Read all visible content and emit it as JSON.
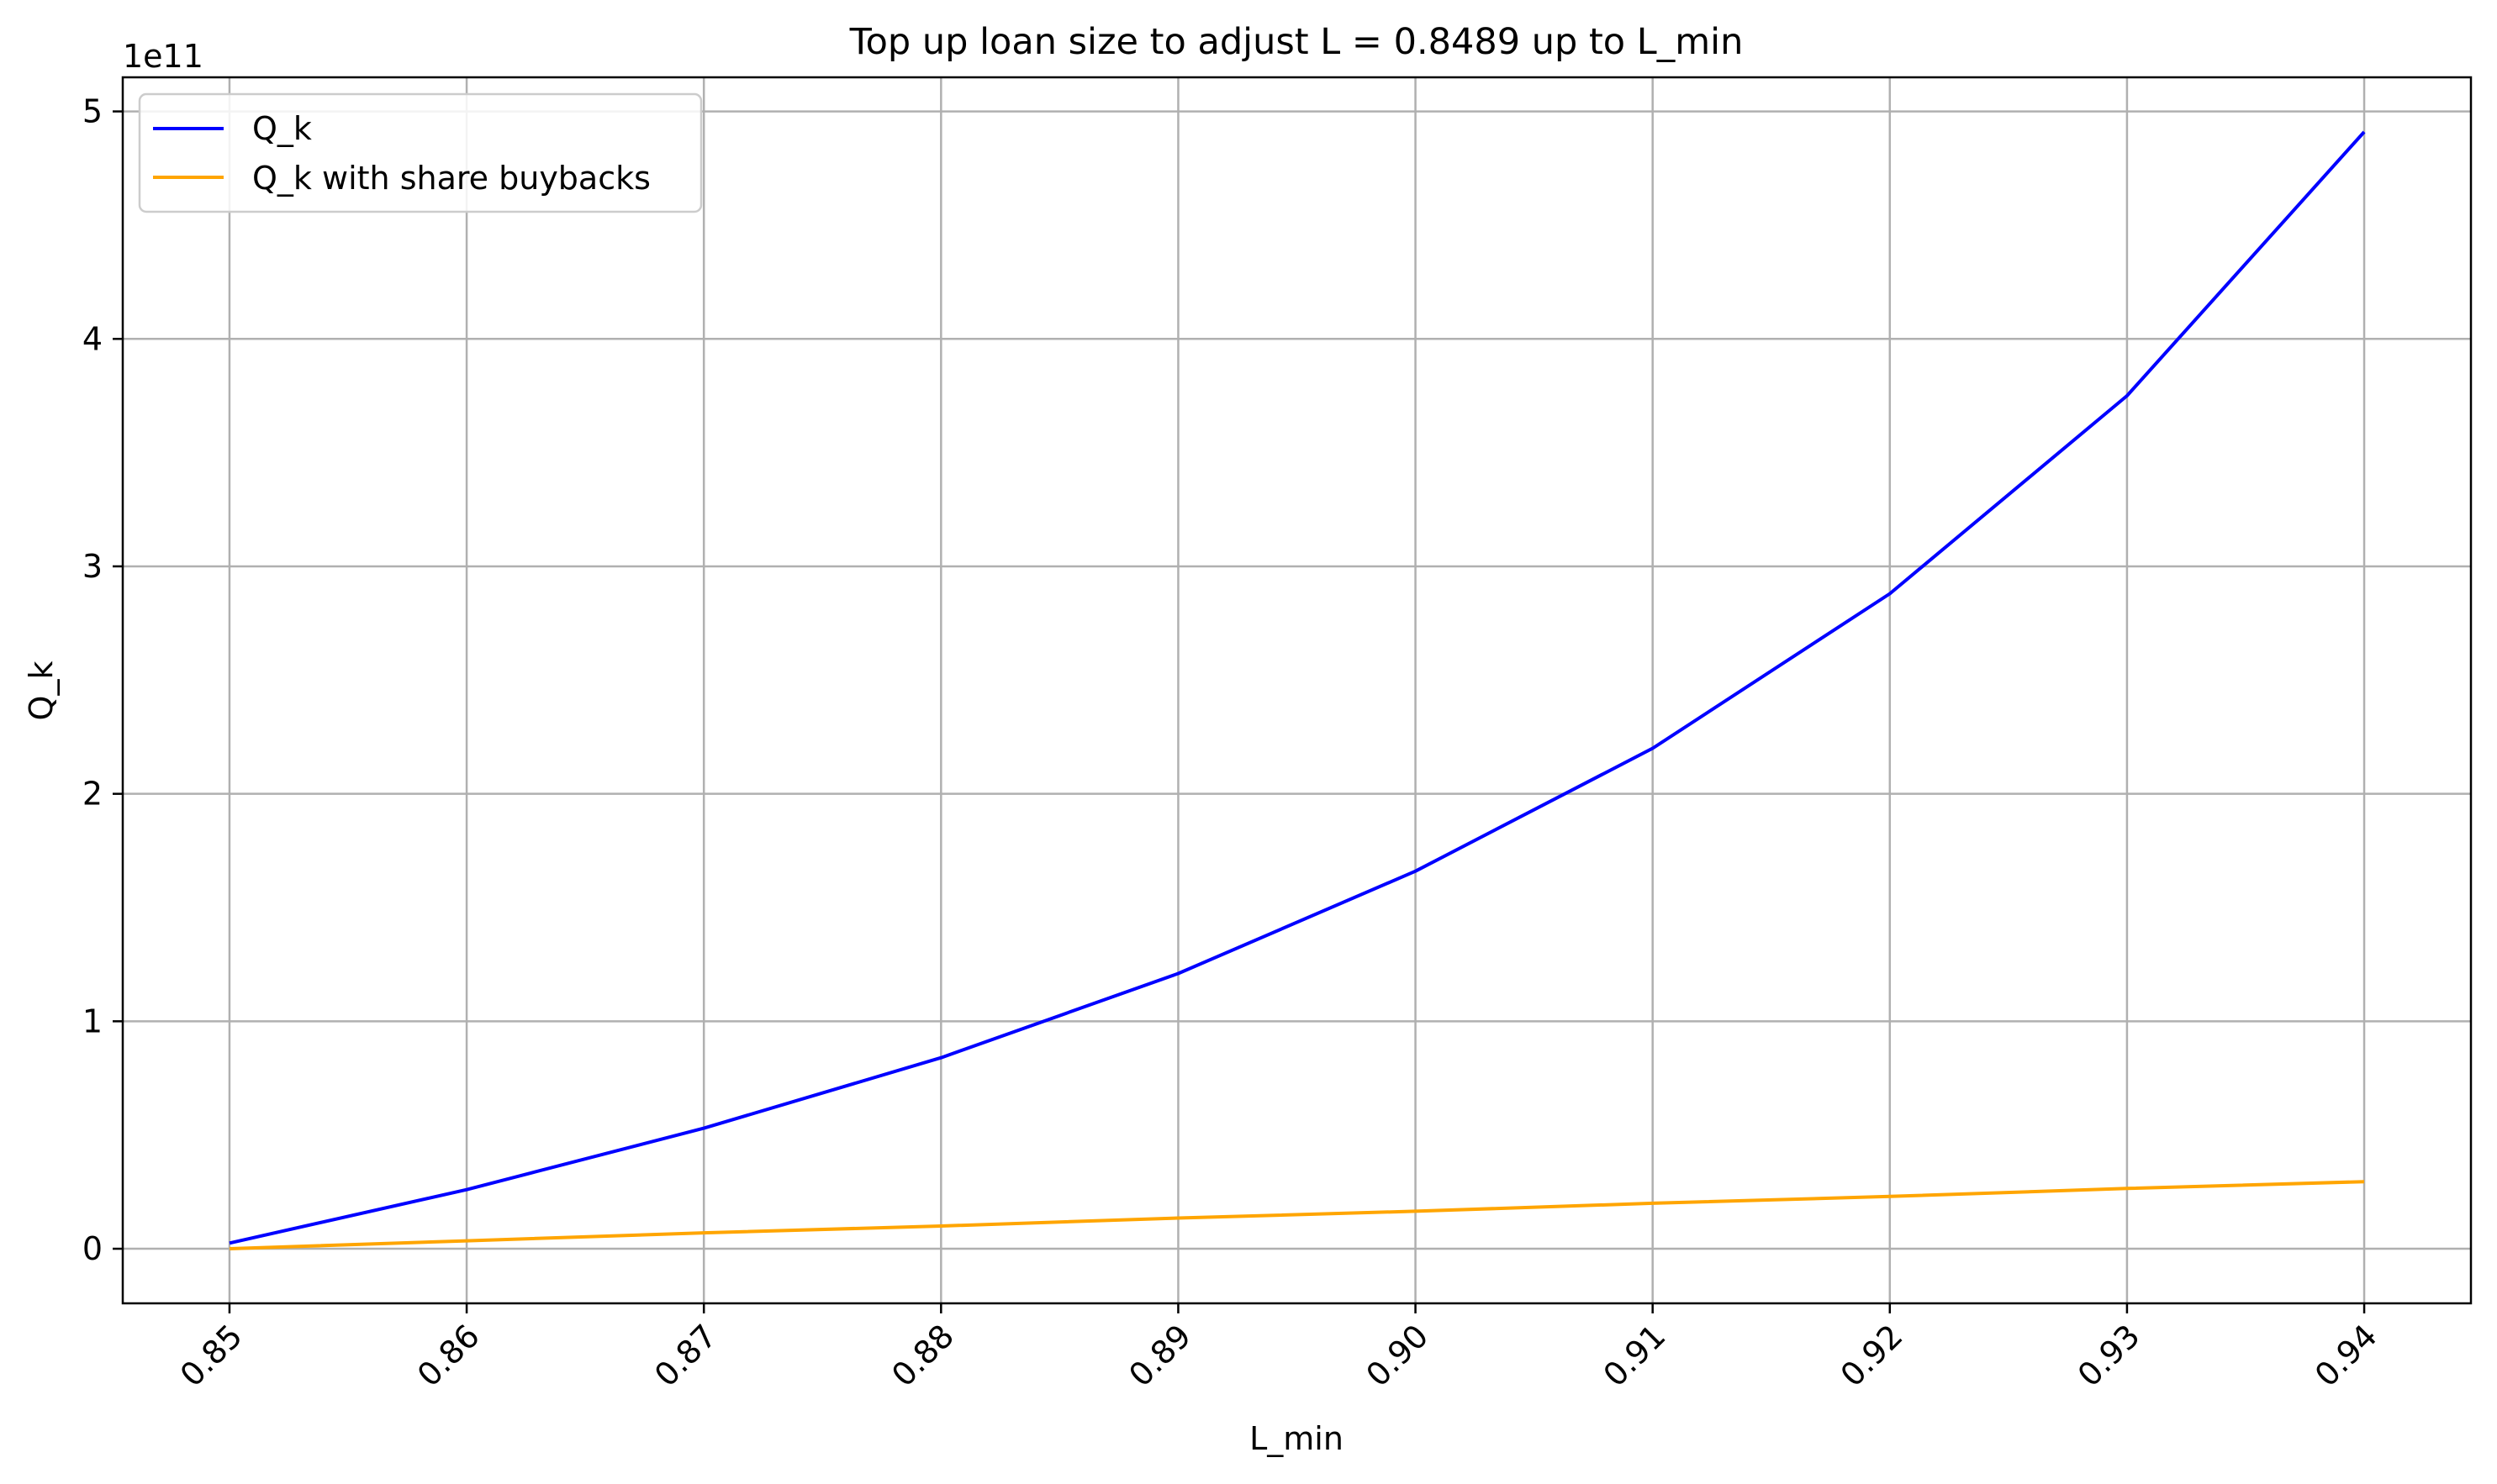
{
  "chart_data": {
    "type": "line",
    "title": "Top up loan size to adjust L = 0.8489 up to L_min",
    "xlabel": "L_min",
    "ylabel": "Q_k",
    "y_offset_label": "1e11",
    "x": [
      0.85,
      0.86,
      0.87,
      0.88,
      0.89,
      0.9,
      0.91,
      0.92,
      0.93,
      0.94
    ],
    "xlim": [
      0.8455,
      0.9445
    ],
    "ylim": [
      -0.24,
      5.15
    ],
    "y_unit_multiplier": 100000000000.0,
    "xticks": [
      0.85,
      0.86,
      0.87,
      0.88,
      0.89,
      0.9,
      0.91,
      0.92,
      0.93,
      0.94
    ],
    "xtick_labels": [
      "0.85",
      "0.86",
      "0.87",
      "0.88",
      "0.89",
      "0.90",
      "0.91",
      "0.92",
      "0.93",
      "0.94"
    ],
    "yticks": [
      0,
      1,
      2,
      3,
      4,
      5
    ],
    "ytick_labels": [
      "0",
      "1",
      "2",
      "3",
      "4",
      "5"
    ],
    "grid": true,
    "legend_position": "top-left",
    "series": [
      {
        "name": "Q_k",
        "color": "#0000ff",
        "values": [
          0.025,
          0.26,
          0.53,
          0.84,
          1.21,
          1.66,
          2.2,
          2.88,
          3.75,
          4.91
        ]
      },
      {
        "name": "Q_k with share buybacks",
        "color": "#ffa500",
        "values": [
          0.0,
          0.035,
          0.07,
          0.1,
          0.135,
          0.165,
          0.2,
          0.23,
          0.265,
          0.295
        ]
      }
    ]
  }
}
